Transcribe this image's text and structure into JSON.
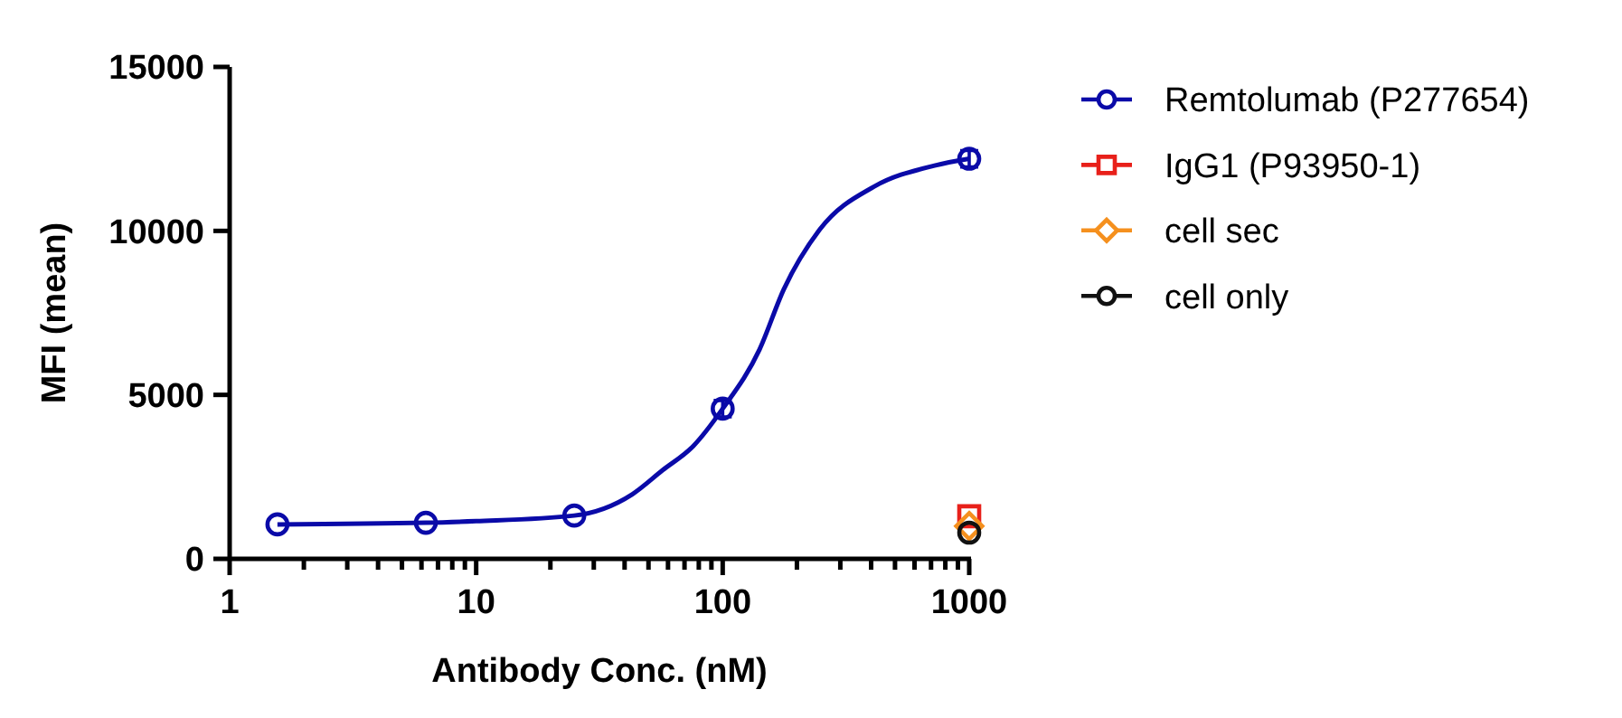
{
  "chart_data": {
    "type": "scatter",
    "xlabel": "Antibody Conc. (nM)",
    "ylabel": "MFI (mean)",
    "log": "x",
    "grid": false,
    "legend": "right",
    "xlim": [
      1,
      1000
    ],
    "xticks": [
      1,
      {
        "value": 2,
        "label": null
      },
      {
        "value": 3,
        "label": null
      },
      {
        "value": 4,
        "label": null
      },
      {
        "value": 5,
        "label": null
      },
      {
        "value": 6,
        "label": null
      },
      {
        "value": 7,
        "label": null
      },
      {
        "value": 8,
        "label": null
      },
      {
        "value": 9,
        "label": null
      },
      10,
      {
        "value": 20,
        "label": null
      },
      {
        "value": 30,
        "label": null
      },
      {
        "value": 40,
        "label": null
      },
      {
        "value": 50,
        "label": null
      },
      {
        "value": 60,
        "label": null
      },
      {
        "value": 70,
        "label": null
      },
      {
        "value": 80,
        "label": null
      },
      {
        "value": 90,
        "label": null
      },
      100,
      {
        "value": 200,
        "label": null
      },
      {
        "value": 300,
        "label": null
      },
      {
        "value": 400,
        "label": null
      },
      {
        "value": 500,
        "label": null
      },
      {
        "value": 600,
        "label": null
      },
      {
        "value": 700,
        "label": null
      },
      {
        "value": 800,
        "label": null
      },
      {
        "value": 900,
        "label": null
      },
      1000
    ],
    "ylim": [
      0,
      15000
    ],
    "yticks": [
      0,
      5000,
      10000,
      15000
    ],
    "series": [
      {
        "name": "Remtolumab (P277654)",
        "type": "scatter",
        "marker": "circle",
        "color": "#0a0aa8",
        "x": [
          1.5625,
          6.25,
          25,
          100,
          1000
        ],
        "values": [
          1050,
          1100,
          1320,
          4580,
          12200
        ],
        "errors": [
          null,
          null,
          null,
          250,
          250
        ]
      },
      {
        "type": "line",
        "marker": "none",
        "color": "#0a0aa8",
        "x": [
          1.5625,
          6.25,
          10,
          25,
          43,
          57,
          76,
          100,
          141,
          177,
          248,
          411,
          723,
          1000
        ],
        "values": [
          1050,
          1100,
          1150,
          1320,
          1970,
          2700,
          3440,
          4580,
          6380,
          8220,
          10050,
          11350,
          11990,
          12200
        ]
      },
      {
        "name": "IgG1 (P93950-1)",
        "type": "scatter",
        "marker": "square",
        "color": "#e8201a",
        "x": [
          1000
        ],
        "values": [
          1300
        ]
      },
      {
        "name": "cell sec",
        "type": "scatter",
        "marker": "diamond",
        "color": "#f5901e",
        "x": [
          1000
        ],
        "values": [
          1000
        ]
      },
      {
        "name": "cell only",
        "type": "scatter",
        "marker": "circle",
        "color": "#111111",
        "x": [
          1000
        ],
        "values": [
          800
        ]
      }
    ]
  }
}
